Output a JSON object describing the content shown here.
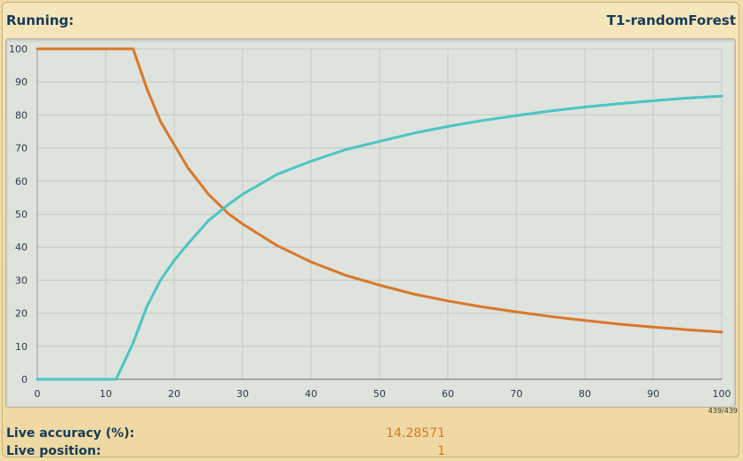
{
  "header": {
    "status_label": "Running:",
    "model_name": "T1-randomForest"
  },
  "counter": "439/439",
  "stats": {
    "accuracy_label": "Live accuracy (%):",
    "accuracy_value": "14.28571",
    "position_label": "Live position:",
    "position_value": "1"
  },
  "chart_data": {
    "type": "line",
    "title": "",
    "xlabel": "",
    "ylabel": "",
    "xlim": [
      0,
      100
    ],
    "ylim": [
      0,
      100
    ],
    "xticks": [
      0,
      10,
      20,
      30,
      40,
      50,
      60,
      70,
      80,
      90,
      100
    ],
    "yticks": [
      0,
      10,
      20,
      30,
      40,
      50,
      60,
      70,
      80,
      90,
      100
    ],
    "grid": true,
    "colors": {
      "orange": "#d9782a",
      "teal": "#4bc5c3",
      "grid": "#c3c8c3",
      "background": "#dfe3dd"
    },
    "series": [
      {
        "color": "#d9782a",
        "x": [
          0,
          14,
          16,
          18,
          20,
          22,
          25,
          28,
          30,
          35,
          40,
          45,
          50,
          55,
          60,
          65,
          70,
          75,
          80,
          85,
          90,
          95,
          100
        ],
        "y": [
          100,
          100,
          88,
          78,
          71,
          64,
          56,
          50,
          47,
          40.5,
          35.5,
          31.5,
          28.5,
          25.8,
          23.7,
          21.9,
          20.4,
          19,
          17.8,
          16.7,
          15.8,
          15,
          14.3
        ]
      },
      {
        "color": "#4bc5c3",
        "x": [
          0,
          11.5,
          14,
          16,
          18,
          20,
          22,
          25,
          28,
          30,
          35,
          40,
          45,
          50,
          55,
          60,
          65,
          70,
          75,
          80,
          85,
          90,
          95,
          100
        ],
        "y": [
          0,
          0,
          11,
          22,
          30,
          36,
          41,
          48,
          53,
          56,
          62,
          66,
          69.5,
          72,
          74.5,
          76.5,
          78.3,
          79.8,
          81.2,
          82.4,
          83.4,
          84.3,
          85.1,
          85.7
        ]
      }
    ]
  }
}
